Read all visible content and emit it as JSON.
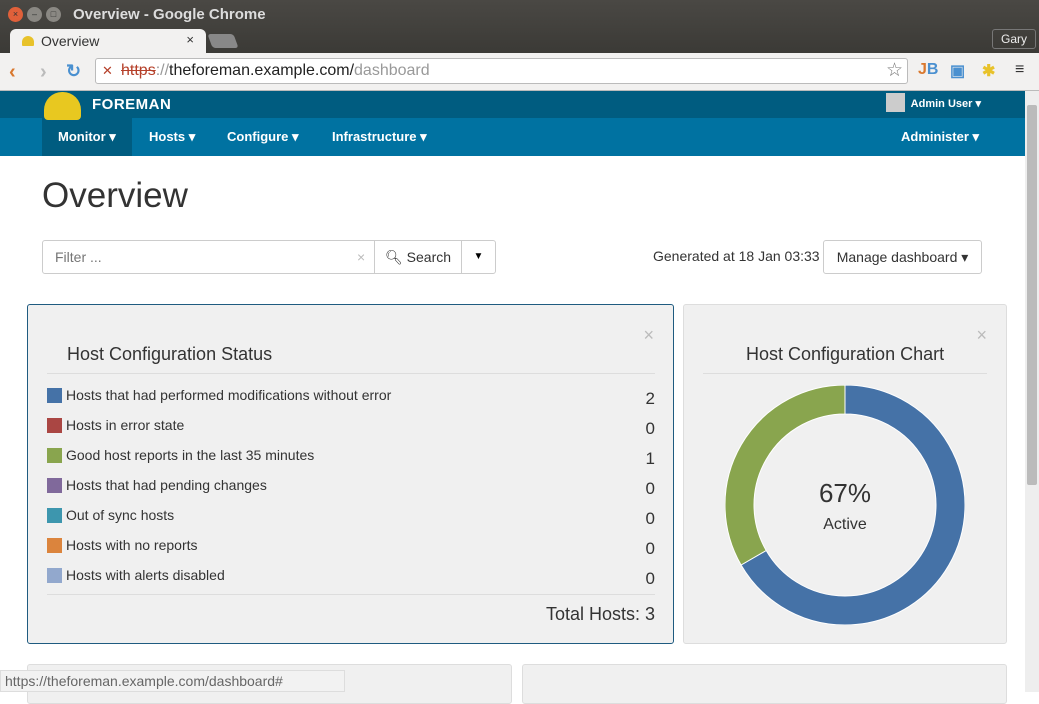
{
  "window": {
    "title": "Overview - Google Chrome",
    "profile": "Gary"
  },
  "tab": {
    "label": "Overview",
    "close": "×"
  },
  "url": {
    "scheme": "https",
    "sep": "://",
    "host": "theforeman.example.com/",
    "path": "dashboard"
  },
  "brand": "FOREMAN",
  "user": "Admin User",
  "menu": [
    "Monitor",
    "Hosts",
    "Configure",
    "Infrastructure"
  ],
  "menu_right": "Administer",
  "page_title": "Overview",
  "filter": {
    "placeholder": "Filter ...",
    "search": "Search"
  },
  "generated": "Generated at 18 Jan 03:33",
  "manage": "Manage dashboard",
  "status_widget": {
    "title": "Host Configuration Status",
    "rows": [
      {
        "label": "Hosts that had performed modifications without error",
        "value": "2",
        "color": "#4572a7"
      },
      {
        "label": "Hosts in error state",
        "value": "0",
        "color": "#aa4643"
      },
      {
        "label": "Good host reports in the last 35 minutes",
        "value": "1",
        "color": "#89a54e"
      },
      {
        "label": "Hosts that had pending changes",
        "value": "0",
        "color": "#80699b"
      },
      {
        "label": "Out of sync hosts",
        "value": "0",
        "color": "#3d96ae"
      },
      {
        "label": "Hosts with no reports",
        "value": "0",
        "color": "#db843d"
      },
      {
        "label": "Hosts with alerts disabled",
        "value": "0",
        "color": "#92a8cd"
      }
    ],
    "total": "Total Hosts: 3"
  },
  "chart_widget": {
    "title": "Host Configuration Chart",
    "center_value": "67%",
    "center_label": "Active"
  },
  "chart_data": {
    "type": "pie",
    "donut": true,
    "slices": [
      {
        "value": 2,
        "color": "#4572a7"
      },
      {
        "value": 1,
        "color": "#89a54e"
      }
    ]
  },
  "status_bar": "https://theforeman.example.com/dashboard#"
}
